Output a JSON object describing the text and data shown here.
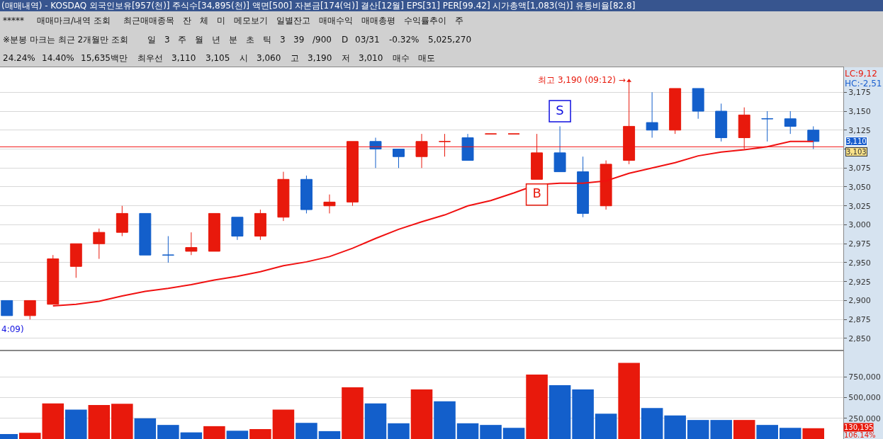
{
  "chart_data": [
    {
      "type": "other",
      "title": "(매매내역) - KOSDAQ 외국인보유[957(천)] 주식수[34,895(천)] 액면[500] 자본금[174(억)] 결산[12월] EPS[31] PER[99.42] 시가총액[1,083(억)] 유통비율[82.8]",
      "annotations": [
        "*****",
        "매매마크/내역 조회",
        "최근매매종목",
        "잔",
        "체",
        "미",
        "메모보기",
        "일별잔고",
        "매매수익",
        "매매총평",
        "수익률추이",
        "주",
        "※분봉 마크는 최근 2개월만 조회",
        "일",
        "3",
        "주",
        "월",
        "년",
        "분",
        "초",
        "틱",
        "3",
        "39",
        "/900",
        "D",
        "03/31",
        "-0.32%",
        "5,025,270",
        "24.24%",
        "14.40%",
        "15,635백만",
        "최우선",
        "3,110",
        "3,105",
        "시",
        "3,060",
        "고",
        "3,190",
        "저",
        "3,010",
        "매수",
        "매도"
      ]
    },
    {
      "type": "candlestick",
      "categories": [
        null,
        null,
        null,
        null,
        null,
        null,
        null,
        null,
        null,
        null,
        null,
        null,
        null,
        null,
        null,
        null,
        null,
        null,
        null,
        null,
        null,
        null,
        null,
        null,
        null,
        null,
        null,
        null,
        null,
        null,
        null,
        null,
        null,
        null,
        null,
        null
      ],
      "ohlc": [
        [
          2900,
          2900,
          2880,
          2880
        ],
        [
          2880,
          2900,
          2875,
          2900
        ],
        [
          2895,
          2960,
          2895,
          2955
        ],
        [
          2945,
          2975,
          2930,
          2975
        ],
        [
          2975,
          2995,
          2955,
          2990
        ],
        [
          2990,
          3025,
          2985,
          3015
        ],
        [
          3015,
          3015,
          2960,
          2960
        ],
        [
          2960,
          2985,
          2950,
          2960
        ],
        [
          2965,
          2990,
          2960,
          2970
        ],
        [
          2965,
          3015,
          2965,
          3015
        ],
        [
          3010,
          3010,
          2980,
          2985
        ],
        [
          2985,
          3020,
          2980,
          3015
        ],
        [
          3010,
          3070,
          3005,
          3060
        ],
        [
          3060,
          3065,
          3015,
          3020
        ],
        [
          3025,
          3040,
          3015,
          3030
        ],
        [
          3030,
          3110,
          3025,
          3110
        ],
        [
          3110,
          3115,
          3075,
          3100
        ],
        [
          3100,
          3100,
          3075,
          3090
        ],
        [
          3090,
          3120,
          3075,
          3110
        ],
        [
          3110,
          3120,
          3090,
          3110
        ],
        [
          3115,
          3120,
          3085,
          3085
        ],
        [
          3120,
          3120,
          3120,
          3120
        ],
        [
          3120,
          3120,
          3120,
          3120
        ],
        [
          3060,
          3120,
          3060,
          3095
        ],
        [
          3095,
          3130,
          3070,
          3070
        ],
        [
          3070,
          3090,
          3010,
          3015
        ],
        [
          3025,
          3085,
          3020,
          3080
        ],
        [
          3085,
          3190,
          3080,
          3130
        ],
        [
          3135,
          3175,
          3115,
          3125
        ],
        [
          3125,
          3180,
          3120,
          3180
        ],
        [
          3180,
          3180,
          3140,
          3150
        ],
        [
          3150,
          3160,
          3110,
          3115
        ],
        [
          3115,
          3155,
          3100,
          3145
        ],
        [
          3140,
          3150,
          3110,
          3140
        ],
        [
          3140,
          3150,
          3120,
          3130
        ],
        [
          3125,
          3130,
          3100,
          3110
        ]
      ],
      "colors": [
        "#135fcb",
        "#e8190c",
        "#e8190c",
        "#e8190c",
        "#e8190c",
        "#e8190c",
        "#135fcb",
        "#135fcb",
        "#e8190c",
        "#e8190c",
        "#135fcb",
        "#e8190c",
        "#e8190c",
        "#135fcb",
        "#e8190c",
        "#e8190c",
        "#135fcb",
        "#135fcb",
        "#e8190c",
        "#e8190c",
        "#135fcb",
        "#e8190c",
        "#e8190c",
        "#e8190c",
        "#135fcb",
        "#135fcb",
        "#e8190c",
        "#e8190c",
        "#135fcb",
        "#e8190c",
        "#135fcb",
        "#135fcb",
        "#e8190c",
        "#135fcb",
        "#135fcb",
        "#135fcb"
      ],
      "series": [
        {
          "type": "line",
          "color": "#f01010",
          "line_style": "solid",
          "marker": "none",
          "values": [
            null,
            null,
            2893,
            2895,
            2899,
            2906,
            2912,
            2916,
            2921,
            2927,
            2932,
            2938,
            2946,
            2951,
            2958,
            2969,
            2982,
            2994,
            3004,
            3013,
            3025,
            3032,
            3042,
            3053,
            3055,
            3055,
            3058,
            3068,
            3075,
            3082,
            3091,
            3096,
            3099,
            3103,
            3110,
            3110
          ]
        },
        {
          "type": "scatter",
          "marker": "square",
          "colors": [
            null,
            null,
            null,
            null,
            null,
            null,
            null,
            null,
            null,
            null,
            null,
            null,
            null,
            null,
            null,
            null,
            null,
            null,
            null,
            null,
            null,
            null,
            null,
            "#e8190c",
            "#1010e0",
            null,
            null,
            null,
            null,
            null,
            null,
            null,
            null,
            null,
            null,
            null
          ],
          "values": [
            null,
            null,
            null,
            null,
            null,
            null,
            null,
            null,
            null,
            null,
            null,
            null,
            null,
            null,
            null,
            null,
            null,
            null,
            null,
            null,
            null,
            null,
            null,
            3040,
            3150,
            null,
            null,
            null,
            null,
            null,
            null,
            null,
            null,
            null,
            null,
            null
          ],
          "value_labels": [
            null,
            null,
            null,
            null,
            null,
            null,
            null,
            null,
            null,
            null,
            null,
            null,
            null,
            null,
            null,
            null,
            null,
            null,
            null,
            null,
            null,
            null,
            null,
            "B",
            "S",
            null,
            null,
            null,
            null,
            null,
            null,
            null,
            null,
            null,
            null,
            null
          ]
        },
        {
          "type": "scatter",
          "marker": "triangle",
          "color": "#e8190c",
          "values": [
            null,
            null,
            null,
            null,
            null,
            null,
            null,
            null,
            null,
            null,
            null,
            null,
            null,
            null,
            null,
            null,
            null,
            null,
            null,
            null,
            null,
            null,
            null,
            null,
            null,
            null,
            null,
            3190,
            null,
            null,
            null,
            null,
            null,
            null,
            null,
            null
          ],
          "value_labels": [
            null,
            null,
            null,
            null,
            null,
            null,
            null,
            null,
            null,
            null,
            null,
            null,
            null,
            null,
            null,
            null,
            null,
            null,
            null,
            null,
            null,
            null,
            null,
            null,
            null,
            null,
            null,
            "최고 3,190 (09:12) →",
            null,
            null,
            null,
            null,
            null,
            null,
            null,
            null
          ]
        }
      ],
      "ylim": [
        2834,
        3208
      ],
      "yticks": [
        {
          "value": 2850,
          "label": "2,850"
        },
        {
          "value": 2875,
          "label": "2,875"
        },
        {
          "value": 2900,
          "label": "2,900"
        },
        {
          "value": 2925,
          "label": "2,925"
        },
        {
          "value": 2950,
          "label": "2,950"
        },
        {
          "value": 2975,
          "label": "2,975"
        },
        {
          "value": 3000,
          "label": "3,000"
        },
        {
          "value": 3025,
          "label": "3,025"
        },
        {
          "value": 3050,
          "label": "3,050"
        },
        {
          "value": 3075,
          "label": "3,075"
        },
        {
          "value": 3100,
          "label": null
        },
        {
          "value": 3125,
          "label": "3,125"
        },
        {
          "value": 3150,
          "label": "3,150"
        },
        {
          "value": 3175,
          "label": "3,175"
        }
      ],
      "ref_lines": [
        {
          "axis": "y",
          "value": 3103,
          "label": "3,103",
          "color": "#f01010"
        }
      ],
      "annotations": [
        "LC:9,12",
        "HC:-2,51",
        "4:09)",
        "3,110"
      ],
      "grid": "y",
      "tick_labels": "y"
    },
    {
      "type": "bar",
      "categories": [
        null,
        null,
        null,
        null,
        null,
        null,
        null,
        null,
        null,
        null,
        null,
        null,
        null,
        null,
        null,
        null,
        null,
        null,
        null,
        null,
        null,
        null,
        null,
        null,
        null,
        null,
        null,
        null,
        null,
        null,
        null,
        null,
        null,
        null,
        null,
        null
      ],
      "values": [
        60000,
        75000,
        430000,
        355000,
        410000,
        425000,
        250000,
        170000,
        80000,
        155000,
        100000,
        120000,
        355000,
        195000,
        95000,
        625000,
        430000,
        190000,
        600000,
        455000,
        190000,
        170000,
        135000,
        780000,
        650000,
        600000,
        305000,
        920000,
        375000,
        285000,
        230000,
        230000,
        230000,
        170000,
        135000,
        130195
      ],
      "colors": [
        "#135fcb",
        "#e8190c",
        "#e8190c",
        "#135fcb",
        "#e8190c",
        "#e8190c",
        "#135fcb",
        "#135fcb",
        "#135fcb",
        "#e8190c",
        "#135fcb",
        "#e8190c",
        "#e8190c",
        "#135fcb",
        "#135fcb",
        "#e8190c",
        "#135fcb",
        "#135fcb",
        "#e8190c",
        "#135fcb",
        "#135fcb",
        "#135fcb",
        "#135fcb",
        "#e8190c",
        "#135fcb",
        "#135fcb",
        "#135fcb",
        "#e8190c",
        "#135fcb",
        "#135fcb",
        "#135fcb",
        "#135fcb",
        "#e8190c",
        "#135fcb",
        "#135fcb",
        "#e8190c"
      ],
      "ylim": [
        0,
        1070000
      ],
      "yticks": [
        {
          "value": 250000,
          "label": "250,000"
        },
        {
          "value": 500000,
          "label": "500,000"
        },
        {
          "value": 750000,
          "label": "750,000"
        }
      ],
      "annotations": [
        "130,195",
        "106.14%"
      ],
      "grid": "y",
      "tick_labels": "y"
    }
  ]
}
